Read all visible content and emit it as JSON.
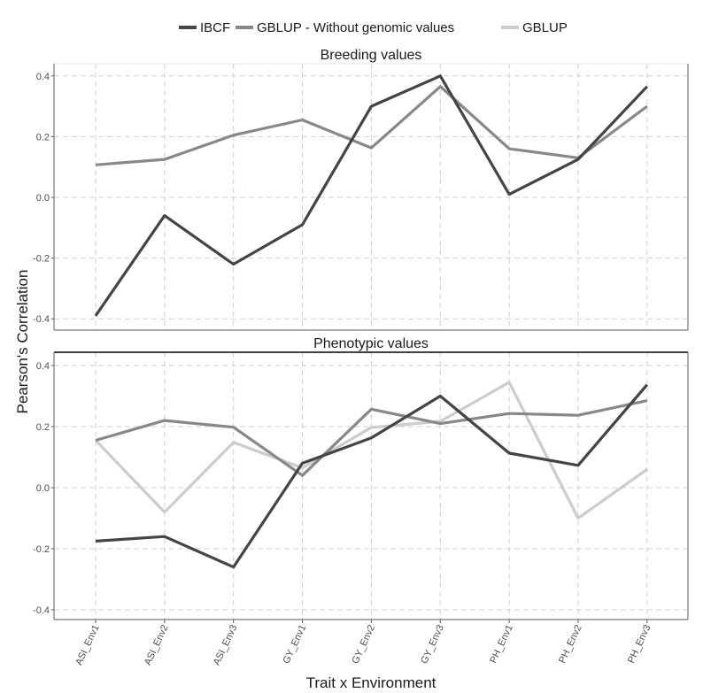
{
  "chart_data": {
    "type": "line",
    "title": "",
    "xlabel": "Trait x Environment",
    "ylabel": "Pearson's Correlation",
    "categories": [
      "ASI_Env1",
      "ASI_Env2",
      "ASI_Env3",
      "GY_Env1",
      "GY_Env2",
      "GY_Env3",
      "PH_Env1",
      "PH_Env2",
      "PH_Env3"
    ],
    "ylim": [
      -0.43,
      0.44
    ],
    "yticks": [
      -0.4,
      -0.2,
      0.0,
      0.2,
      0.4
    ],
    "ytick_labels": [
      "-0.4",
      "-0.2",
      "0.0",
      "0.2",
      "0.4"
    ],
    "grid": true,
    "legend_position": "top",
    "legend": [
      {
        "name": "IBCF",
        "color": "#444444"
      },
      {
        "name": "GBLUP - Without genomic values",
        "color": "#888888"
      },
      {
        "name": "GBLUP",
        "color": "#cccccc"
      }
    ],
    "panels": [
      {
        "title": "Breeding values",
        "series": [
          {
            "name": "IBCF",
            "color": "#444444",
            "values": [
              -0.39,
              -0.06,
              -0.22,
              -0.09,
              0.3,
              0.4,
              0.01,
              0.125,
              0.365
            ]
          },
          {
            "name": "GBLUP - Without genomic values",
            "color": "#888888",
            "values": [
              0.107,
              0.125,
              0.205,
              0.255,
              0.163,
              0.365,
              0.16,
              0.13,
              0.3
            ]
          }
        ]
      },
      {
        "title": "Phenotypic values",
        "series": [
          {
            "name": "IBCF",
            "color": "#444444",
            "values": [
              -0.175,
              -0.16,
              -0.26,
              0.08,
              0.163,
              0.3,
              0.113,
              0.073,
              0.337
            ]
          },
          {
            "name": "GBLUP - Without genomic values",
            "color": "#888888",
            "values": [
              0.155,
              0.22,
              0.198,
              0.04,
              0.257,
              0.21,
              0.243,
              0.237,
              0.285
            ]
          },
          {
            "name": "GBLUP",
            "color": "#cccccc",
            "values": [
              0.155,
              -0.08,
              0.148,
              0.065,
              0.197,
              0.217,
              0.345,
              -0.1,
              0.06
            ]
          }
        ]
      }
    ]
  }
}
